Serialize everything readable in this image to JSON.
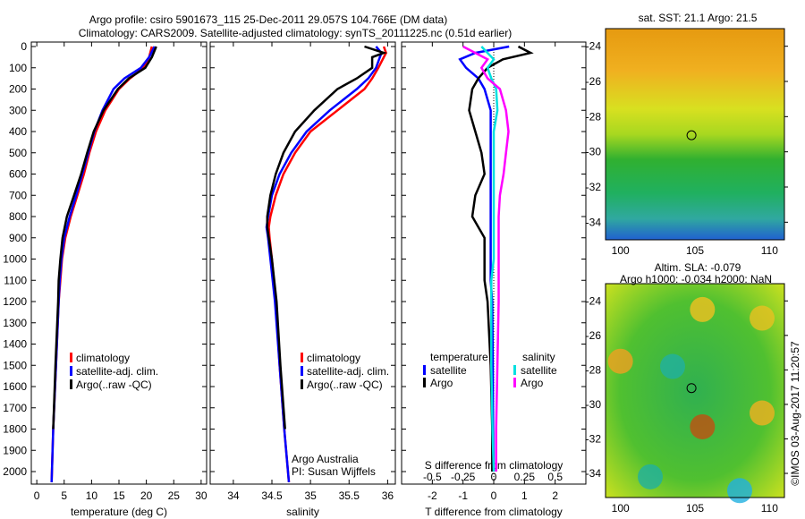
{
  "chart_data": [
    {
      "type": "line",
      "title": "Argo profile: csiro 5901673_115 25-Dec-2011 29.057S 104.766E (DM data)",
      "subtitle": "Climatology: CARS2009. Satellite-adjusted climatology: synTS_20111225.nc (0.51d earlier)",
      "xlabel": "temperature (deg C)",
      "xlim": [
        -1,
        31
      ],
      "xticks": [
        0,
        5,
        10,
        15,
        20,
        25,
        30
      ],
      "ylim": [
        2050,
        0
      ],
      "yticks": [
        0,
        100,
        200,
        300,
        400,
        500,
        600,
        700,
        800,
        900,
        1000,
        1100,
        1200,
        1300,
        1400,
        1500,
        1600,
        1700,
        1800,
        1900,
        2000
      ],
      "depth": [
        0,
        50,
        100,
        150,
        200,
        300,
        400,
        500,
        600,
        700,
        800,
        900,
        1000,
        1100,
        1200,
        1500,
        1800,
        2050
      ],
      "legend": [
        "climatology",
        "satellite-adj. clim.",
        "Argo(..raw -QC)"
      ],
      "series": [
        {
          "name": "climatology",
          "color": "#ff0000",
          "values": [
            21,
            20.5,
            19.5,
            17,
            15,
            12.5,
            10.8,
            9.6,
            8.6,
            7.4,
            6.2,
            5.2,
            4.6,
            4.3,
            4.0,
            3.5,
            3.0,
            2.7
          ]
        },
        {
          "name": "satellite-adj. clim.",
          "color": "#0000ff",
          "values": [
            21.5,
            20.5,
            19,
            16,
            14,
            12,
            10.5,
            9.4,
            8.3,
            7.2,
            6,
            5,
            4.5,
            4.2,
            4.0,
            3.5,
            3.0,
            2.7
          ]
        },
        {
          "name": "Argo(..raw -QC)",
          "color": "#000000",
          "values": [
            21.8,
            21,
            19.8,
            16.8,
            14.8,
            12.2,
            10.4,
            9.2,
            8.1,
            6.8,
            5.5,
            4.7,
            4.3,
            4.0,
            3.9,
            3.4,
            3.0
          ]
        }
      ]
    },
    {
      "type": "line",
      "xlabel": "salinity",
      "xlim": [
        33.7,
        36.1
      ],
      "xticks": [
        34,
        34.5,
        35,
        35.5,
        36
      ],
      "depth": [
        0,
        30,
        50,
        100,
        150,
        200,
        300,
        400,
        500,
        600,
        700,
        800,
        850,
        900,
        1000,
        1200,
        1500,
        1800,
        2050
      ],
      "legend": [
        "climatology",
        "satellite-adj. clim.",
        "Argo(..raw -QC)"
      ],
      "annotation": [
        "Argo Australia",
        "PI: Susan Wijffels"
      ],
      "series": [
        {
          "name": "climatology",
          "color": "#ff0000",
          "values": [
            35.95,
            35.98,
            35.95,
            35.88,
            35.8,
            35.7,
            35.35,
            35.0,
            34.8,
            34.65,
            34.55,
            34.48,
            34.46,
            34.47,
            34.5,
            34.55,
            34.6,
            34.66,
            34.72
          ]
        },
        {
          "name": "satellite-adj. clim.",
          "color": "#0000ff",
          "values": [
            35.85,
            35.92,
            35.9,
            35.85,
            35.75,
            35.6,
            35.25,
            34.95,
            34.75,
            34.6,
            34.5,
            34.45,
            34.43,
            34.45,
            34.48,
            34.54,
            34.6,
            34.66,
            34.72
          ]
        },
        {
          "name": "Argo(..raw -QC)",
          "color": "#000000",
          "values": [
            35.7,
            35.95,
            35.8,
            35.8,
            35.6,
            35.35,
            35.05,
            34.8,
            34.65,
            34.55,
            34.48,
            34.44,
            34.44,
            34.46,
            34.5,
            34.56,
            34.61,
            34.67
          ]
        }
      ]
    },
    {
      "type": "line",
      "xlabel": "T difference from climatology",
      "xlim": [
        -3,
        3
      ],
      "xticks": [
        -2,
        -1,
        0,
        1,
        2
      ],
      "x2label": "S difference from climatology",
      "x2ticks": [
        "-0.5",
        "-0.25",
        "0",
        "0.25",
        "0.5"
      ],
      "legend_temperature": {
        "title": "temperature",
        "items": [
          "satellite",
          "Argo"
        ]
      },
      "legend_salinity": {
        "title": "salinity",
        "items": [
          "satellite",
          "Argo"
        ]
      },
      "depth": [
        0,
        30,
        60,
        100,
        150,
        200,
        300,
        400,
        500,
        600,
        700,
        800,
        900,
        1000,
        1100,
        1200,
        1500,
        1800,
        2000
      ],
      "series": [
        {
          "name": "temperature satellite",
          "color": "#0000ff",
          "values": [
            0.5,
            -0.6,
            -1.1,
            -0.9,
            -0.5,
            -0.3,
            -0.1,
            -0.1,
            -0.1,
            -0.1,
            -0.1,
            -0.1,
            -0.1,
            -0.1,
            -0.1,
            -0.05,
            -0.03,
            -0.02,
            0
          ]
        },
        {
          "name": "temperature Argo",
          "color": "#000000",
          "values": [
            0.8,
            1.2,
            0.3,
            -0.2,
            -0.5,
            -0.7,
            -0.8,
            -0.6,
            -0.4,
            -0.3,
            -0.6,
            -0.7,
            -0.3,
            -0.3,
            -0.3,
            -0.2,
            -0.1,
            -0.05,
            -0.05
          ]
        },
        {
          "name": "salinity satellite",
          "color": "#00e0e0",
          "values": [
            -0.1,
            -0.05,
            0,
            -0.05,
            -0.02,
            0.02,
            0.03,
            0,
            0,
            0,
            0,
            0,
            0,
            0,
            -0.02,
            -0.02,
            -0.02,
            -0.01,
            0
          ]
        },
        {
          "name": "salinity Argo",
          "color": "#ff00ff",
          "values": [
            -0.25,
            -0.15,
            -0.05,
            -0.1,
            -0.05,
            0.05,
            0.1,
            0.12,
            0.1,
            0.08,
            0.05,
            0.04,
            0.04,
            0.04,
            0.04,
            0.04,
            0.03,
            0.02,
            0.02
          ]
        }
      ]
    },
    {
      "type": "heatmap",
      "title": "sat. SST: 21.1  Argo: 21.5",
      "xticks": [
        100,
        105,
        110
      ],
      "yticks": [
        -24,
        -26,
        -28,
        -30,
        -32,
        -34
      ],
      "marker": [
        104.766,
        -29.057
      ]
    },
    {
      "type": "heatmap",
      "title": "Altim. SLA: -0.079",
      "subtitle": "Argo h1000: -0.034 h2000: NaN",
      "xticks": [
        100,
        105,
        110
      ],
      "yticks": [
        -24,
        -26,
        -28,
        -30,
        -32,
        -34
      ],
      "marker": [
        104.766,
        -29.057
      ],
      "credit": "©IMOS 03-Aug-2017 11:20:57"
    }
  ]
}
